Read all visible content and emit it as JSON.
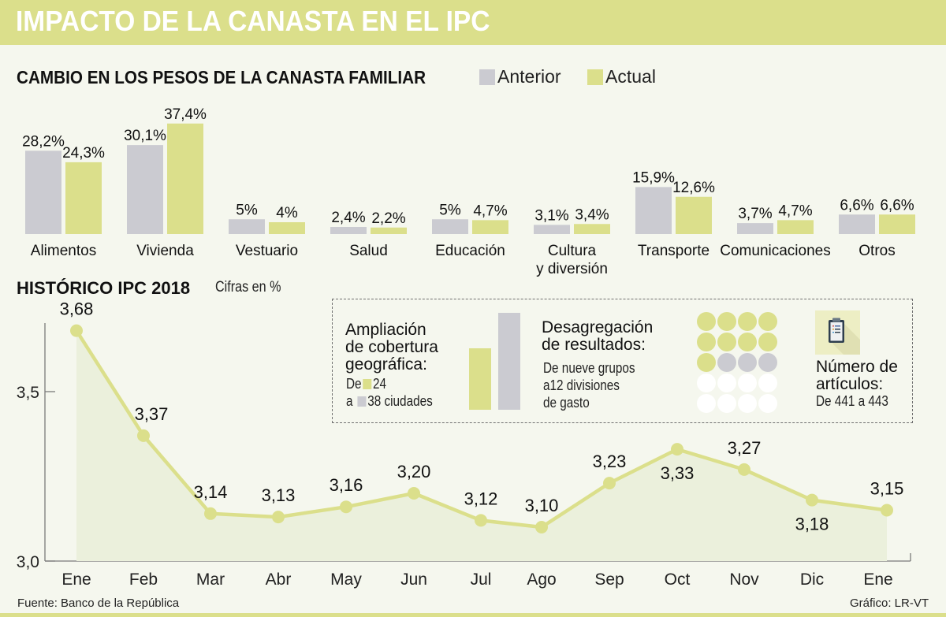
{
  "header": {
    "title": "IMPACTO DE LA CANASTA EN EL IPC"
  },
  "colors": {
    "anterior": "#cbcbd1",
    "actual": "#dbdf8b",
    "line": "#dbdf8b",
    "area": "#ebf0dc",
    "axis": "#7a7a7a",
    "banner": "#dbdf8b",
    "background": "#f5f7ee"
  },
  "chart_data": [
    {
      "type": "bar",
      "title": "CAMBIO EN LOS PESOS DE LA CANASTA FAMILIAR",
      "legend": [
        "Anterior",
        "Actual"
      ],
      "legend_position": "top-right",
      "categories": [
        "Alimentos",
        "Vivienda",
        "Vestuario",
        "Salud",
        "Educación",
        "Cultura y diversión",
        "Transporte",
        "Comunicaciones",
        "Otros"
      ],
      "category_lines": [
        [
          "Alimentos"
        ],
        [
          "Vivienda"
        ],
        [
          "Vestuario"
        ],
        [
          "Salud"
        ],
        [
          "Educación"
        ],
        [
          "Cultura",
          "y diversión"
        ],
        [
          "Transporte"
        ],
        [
          "Comunicaciones"
        ],
        [
          "Otros"
        ]
      ],
      "series": [
        {
          "name": "Anterior",
          "values": [
            28.2,
            30.1,
            5,
            2.4,
            5,
            3.1,
            15.9,
            3.7,
            6.6
          ],
          "labels": [
            "28,2%",
            "30,1%",
            "5%",
            "2,4%",
            "5%",
            "3,1%",
            "15,9%",
            "3,7%",
            "6,6%"
          ]
        },
        {
          "name": "Actual",
          "values": [
            24.3,
            37.4,
            4,
            2.2,
            4.7,
            3.4,
            12.6,
            4.7,
            6.6
          ],
          "labels": [
            "24,3%",
            "37,4%",
            "4%",
            "2,2%",
            "4,7%",
            "3,4%",
            "12,6%",
            "4,7%",
            "6,6%"
          ]
        }
      ],
      "xlabel": "",
      "ylabel": ""
    },
    {
      "type": "line",
      "title": "HISTÓRICO IPC 2018",
      "subtitle": "Cifras en %",
      "x": [
        "Ene",
        "Feb",
        "Mar",
        "Abr",
        "May",
        "Jun",
        "Jul",
        "Ago",
        "Sep",
        "Oct",
        "Nov",
        "Dic",
        "Ene"
      ],
      "series": [
        {
          "name": "IPC",
          "values": [
            3.68,
            3.37,
            3.14,
            3.13,
            3.16,
            3.2,
            3.12,
            3.1,
            3.23,
            3.33,
            3.27,
            3.18,
            3.15
          ],
          "labels": [
            "3,68",
            "3,37",
            "3,14",
            "3,13",
            "3,16",
            "3,20",
            "3,12",
            "3,10",
            "3,23",
            "3,33",
            "3,27",
            "3,18",
            "3,15"
          ]
        }
      ],
      "yticks": [
        "3,0",
        "3,5"
      ],
      "ytick_values": [
        3.0,
        3.5
      ],
      "ylim": [
        3.0,
        3.7
      ],
      "grid": false,
      "area_fill": true
    }
  ],
  "infobox": {
    "coverage": {
      "title_lines": [
        "Ampliación",
        "de cobertura",
        "geográfica:"
      ],
      "from_prefix": "De",
      "from_value": "24",
      "to_prefix": "a",
      "to_value": "38 ciudades",
      "values": [
        24,
        38
      ]
    },
    "disaggregation": {
      "title_lines": [
        "Desagregación",
        "de resultados:"
      ],
      "detail_lines": [
        "De nueve grupos",
        "a12 divisiones",
        "de gasto"
      ],
      "dots": {
        "actual": 9,
        "added": 3,
        "empty": 8
      }
    },
    "articles": {
      "icon": "clipboard-icon",
      "title_lines": [
        "Número de",
        "artículos:"
      ],
      "detail": "De 441 a 443"
    }
  },
  "footer": {
    "source": "Fuente: Banco de la República",
    "credit": "Gráfico: LR-VT"
  }
}
